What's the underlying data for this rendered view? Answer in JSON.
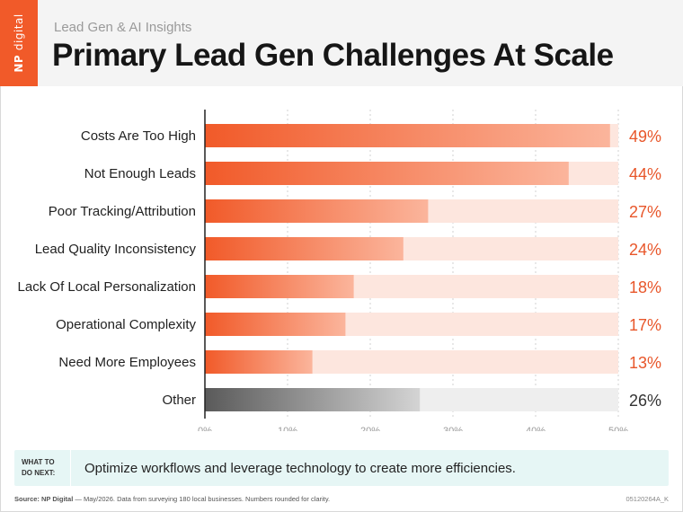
{
  "header": {
    "logo_np": "NP",
    "logo_digital": "digital",
    "kicker": "Lead Gen & AI Insights",
    "title": "Primary Lead Gen Challenges At Scale"
  },
  "chart_data": {
    "type": "bar",
    "orientation": "horizontal",
    "categories": [
      "Costs Are Too High",
      "Not Enough Leads",
      "Poor Tracking/Attribution",
      "Lead Quality Inconsistency",
      "Lack Of Local Personalization",
      "Operational Complexity",
      "Need More Employees",
      "Other"
    ],
    "values": [
      49,
      44,
      27,
      24,
      18,
      17,
      13,
      26
    ],
    "value_labels": [
      "49%",
      "44%",
      "27%",
      "24%",
      "18%",
      "17%",
      "13%",
      "26%"
    ],
    "xticks": [
      "0%",
      "10%",
      "20%",
      "30%",
      "40%",
      "50%"
    ],
    "xlim": [
      0,
      50
    ],
    "grid": true,
    "colors": {
      "bar_start": "#f15a29",
      "bar_end": "#fbb59c",
      "track": "#fde6de",
      "label": "#e8562a",
      "other_start": "#5a5a5a",
      "other_end": "#d4d4d4",
      "other_track": "#eeeeee",
      "other_label": "#333333"
    }
  },
  "next": {
    "tag": "WHAT TO DO NEXT:",
    "text": "Optimize workflows and leverage technology to create more efficiencies."
  },
  "footer": {
    "source_label": "Source: NP Digital",
    "source_text": " — May/2026. Data from surveying 180 local businesses. Numbers rounded for clarity.",
    "code": "05120264A_K"
  }
}
